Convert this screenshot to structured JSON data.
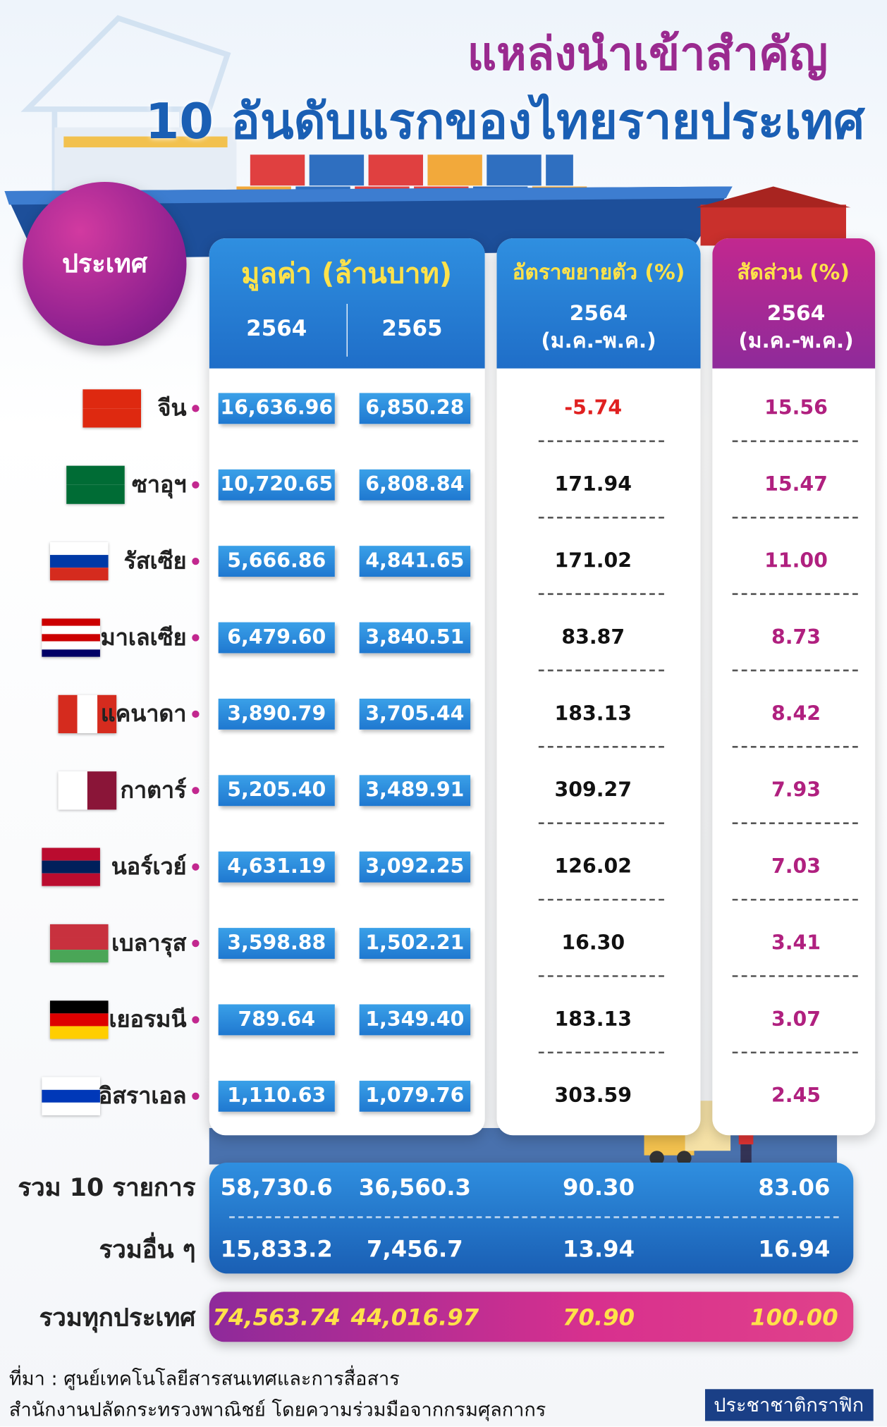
{
  "header": {
    "title_line1": "แหล่งนำเข้าสำคัญ",
    "title_line2": "10 อันดับแรกของไทยรายประเทศ"
  },
  "table": {
    "country_header": "ประเทศ",
    "value_header": "มูลค่า (ล้านบาท)",
    "value_years": [
      "2564",
      "2565"
    ],
    "growth_header": "อัตราขยายตัว (%)",
    "growth_year": "2564",
    "growth_period": "(ม.ค.-พ.ค.)",
    "share_header": "สัดส่วน (%)",
    "share_year": "2564",
    "share_period": "(ม.ค.-พ.ค.)",
    "rows": [
      {
        "country": "จีน",
        "value_2564": "16,636.96",
        "value_2565": "6,850.28",
        "growth": "-5.74",
        "share": "15.56"
      },
      {
        "country": "ซาอุฯ",
        "value_2564": "10,720.65",
        "value_2565": "6,808.84",
        "growth": "171.94",
        "share": "15.47"
      },
      {
        "country": "รัสเซีย",
        "value_2564": "5,666.86",
        "value_2565": "4,841.65",
        "growth": "171.02",
        "share": "11.00"
      },
      {
        "country": "มาเลเซีย",
        "value_2564": "6,479.60",
        "value_2565": "3,840.51",
        "growth": "83.87",
        "share": "8.73"
      },
      {
        "country": "แคนาดา",
        "value_2564": "3,890.79",
        "value_2565": "3,705.44",
        "growth": "183.13",
        "share": "8.42"
      },
      {
        "country": "กาตาร์",
        "value_2564": "5,205.40",
        "value_2565": "3,489.91",
        "growth": "309.27",
        "share": "7.93"
      },
      {
        "country": "นอร์เวย์",
        "value_2564": "4,631.19",
        "value_2565": "3,092.25",
        "growth": "126.02",
        "share": "7.03"
      },
      {
        "country": "เบลารุส",
        "value_2564": "3,598.88",
        "value_2565": "1,502.21",
        "growth": "16.30",
        "share": "3.41"
      },
      {
        "country": "เยอรมนี",
        "value_2564": "789.64",
        "value_2565": "1,349.40",
        "growth": "183.13",
        "share": "3.07"
      },
      {
        "country": "อิสราเอล",
        "value_2564": "1,110.63",
        "value_2565": "1,079.76",
        "growth": "303.59",
        "share": "2.45"
      }
    ],
    "totals": [
      {
        "label": "รวม 10 รายการ",
        "value_2564": "58,730.6",
        "value_2565": "36,560.3",
        "growth": "90.30",
        "share": "83.06"
      },
      {
        "label": "รวมอื่น ๆ",
        "value_2564": "15,833.2",
        "value_2565": "7,456.7",
        "growth": "13.94",
        "share": "16.94"
      }
    ],
    "grand_total": {
      "label": "รวมทุกประเทศ",
      "value_2564": "74,563.74",
      "value_2565": "44,016.97",
      "growth": "70.90",
      "share": "100.00"
    }
  },
  "footer": {
    "source_line1": "ที่มา : ศูนย์เทคโนโลยีสารสนเทศและการสื่อสาร",
    "source_line2": "สำนักงานปลัดกระทรวงพาณิชย์ โดยความร่วมมือจากกรมศุลกากร",
    "brand": "ประชาชาติกราฟิก"
  }
}
